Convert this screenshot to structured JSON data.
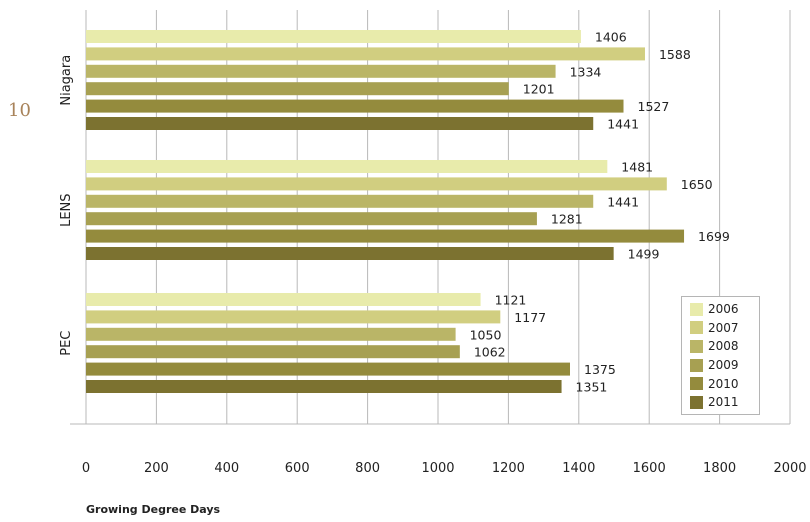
{
  "page_number": "10",
  "chart_data": {
    "type": "bar",
    "orientation": "horizontal",
    "title": "",
    "xlabel": "Growing Degree Days",
    "ylabel": "",
    "xlim": [
      0,
      2000
    ],
    "xticks": [
      "0",
      "200",
      "400",
      "600",
      "800",
      "1000",
      "1200",
      "1400",
      "1600",
      "1800",
      "2000"
    ],
    "grid": "vertical",
    "legend_position": "lower-right",
    "categories": [
      "Niagara",
      "LENS",
      "PEC"
    ],
    "series": [
      {
        "name": "2006",
        "color": "#e8ebab",
        "values": [
          1406,
          1481,
          1121
        ]
      },
      {
        "name": "2007",
        "color": "#d1ce80",
        "values": [
          1588,
          1650,
          1177
        ]
      },
      {
        "name": "2008",
        "color": "#bab567",
        "values": [
          1334,
          1441,
          1050
        ]
      },
      {
        "name": "2009",
        "color": "#a7a052",
        "values": [
          1201,
          1281,
          1062
        ]
      },
      {
        "name": "2010",
        "color": "#948b3d",
        "values": [
          1527,
          1699,
          1375
        ]
      },
      {
        "name": "2011",
        "color": "#7c7230",
        "values": [
          1441,
          1499,
          1351
        ]
      }
    ]
  }
}
